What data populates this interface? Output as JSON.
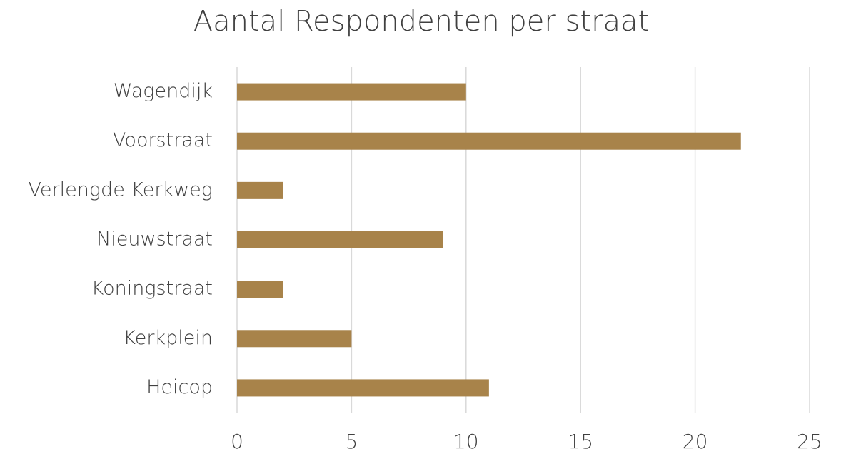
{
  "chart_data": {
    "type": "hbar",
    "title": "Aantal Respondenten per straat",
    "categories": [
      "Wagendijk",
      "Voorstraat",
      "Verlengde Kerkweg",
      "Nieuwstraat",
      "Koningstraat",
      "Kerkplein",
      "Heicop"
    ],
    "values": [
      10,
      22,
      2,
      9,
      2,
      5,
      11
    ],
    "color": "#a8834a",
    "xlim": [
      0,
      25
    ],
    "xticks": [
      0,
      5,
      10,
      15,
      20,
      25
    ],
    "grid": true
  }
}
